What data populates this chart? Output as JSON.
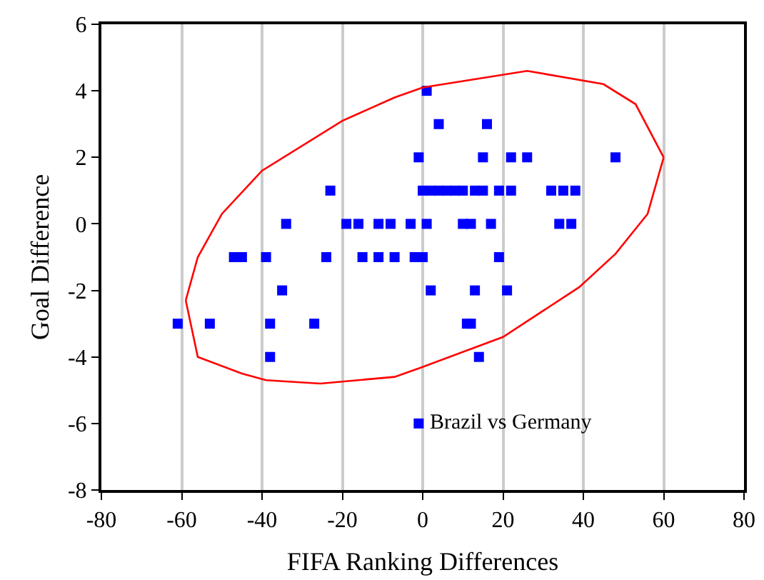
{
  "chart_data": {
    "type": "scatter",
    "xlabel": "FIFA Ranking Differences",
    "ylabel": "Goal Difference",
    "xlim": [
      -80,
      80
    ],
    "xticks": [
      -80,
      -60,
      -40,
      -20,
      0,
      20,
      40,
      60,
      80
    ],
    "ylim": [
      -8,
      6
    ],
    "yticks": [
      -8,
      -6,
      -4,
      -2,
      0,
      2,
      4,
      6
    ],
    "grid": "x",
    "marker": "square",
    "series": [
      {
        "color": "#0000ff",
        "x": [
          1,
          4,
          16,
          -1,
          15,
          22,
          26,
          48,
          -23,
          0,
          2,
          4,
          6,
          8,
          10,
          13,
          15,
          19,
          22,
          32,
          35,
          38,
          -34,
          -19,
          -16,
          -11,
          -8,
          -3,
          1,
          10,
          12,
          17,
          34,
          37,
          -47,
          -45,
          -39,
          -24,
          -15,
          -11,
          -7,
          -2,
          0,
          19,
          -35,
          2,
          13,
          21,
          -61,
          -53,
          -38,
          -27,
          11,
          12,
          -38,
          14,
          -1
        ],
        "values": [
          4,
          3,
          3,
          2,
          2,
          2,
          2,
          2,
          1,
          1,
          1,
          1,
          1,
          1,
          1,
          1,
          1,
          1,
          1,
          1,
          1,
          1,
          0,
          0,
          0,
          0,
          0,
          0,
          0,
          0,
          0,
          0,
          0,
          0,
          -1,
          -1,
          -1,
          -1,
          -1,
          -1,
          -1,
          -1,
          -1,
          -1,
          -2,
          -2,
          -2,
          -2,
          -3,
          -3,
          -3,
          -3,
          -3,
          -3,
          -4,
          -4,
          -6
        ]
      },
      {
        "type": "line",
        "marker": "none",
        "color": "#ff0000",
        "x": [
          -59,
          -56,
          -50,
          -40,
          -20,
          -7,
          0,
          26,
          45,
          53,
          60
        ],
        "values": [
          -2.3,
          -1,
          0.3,
          1.6,
          3.1,
          3.8,
          4.1,
          4.6,
          4.2,
          3.6,
          2.0
        ]
      },
      {
        "type": "line",
        "marker": "none",
        "color": "#ff0000",
        "x": [
          -59,
          -56,
          -45,
          -39,
          -25.5,
          -7,
          0,
          20,
          39,
          48,
          56,
          60
        ],
        "values": [
          -2.3,
          -4.0,
          -4.5,
          -4.7,
          -4.8,
          -4.6,
          -4.3,
          -3.4,
          -1.9,
          -0.9,
          0.3,
          2.0
        ]
      }
    ],
    "annotations": [
      {
        "text": "Brazil vs Germany",
        "x": -1,
        "y": -6
      }
    ]
  }
}
